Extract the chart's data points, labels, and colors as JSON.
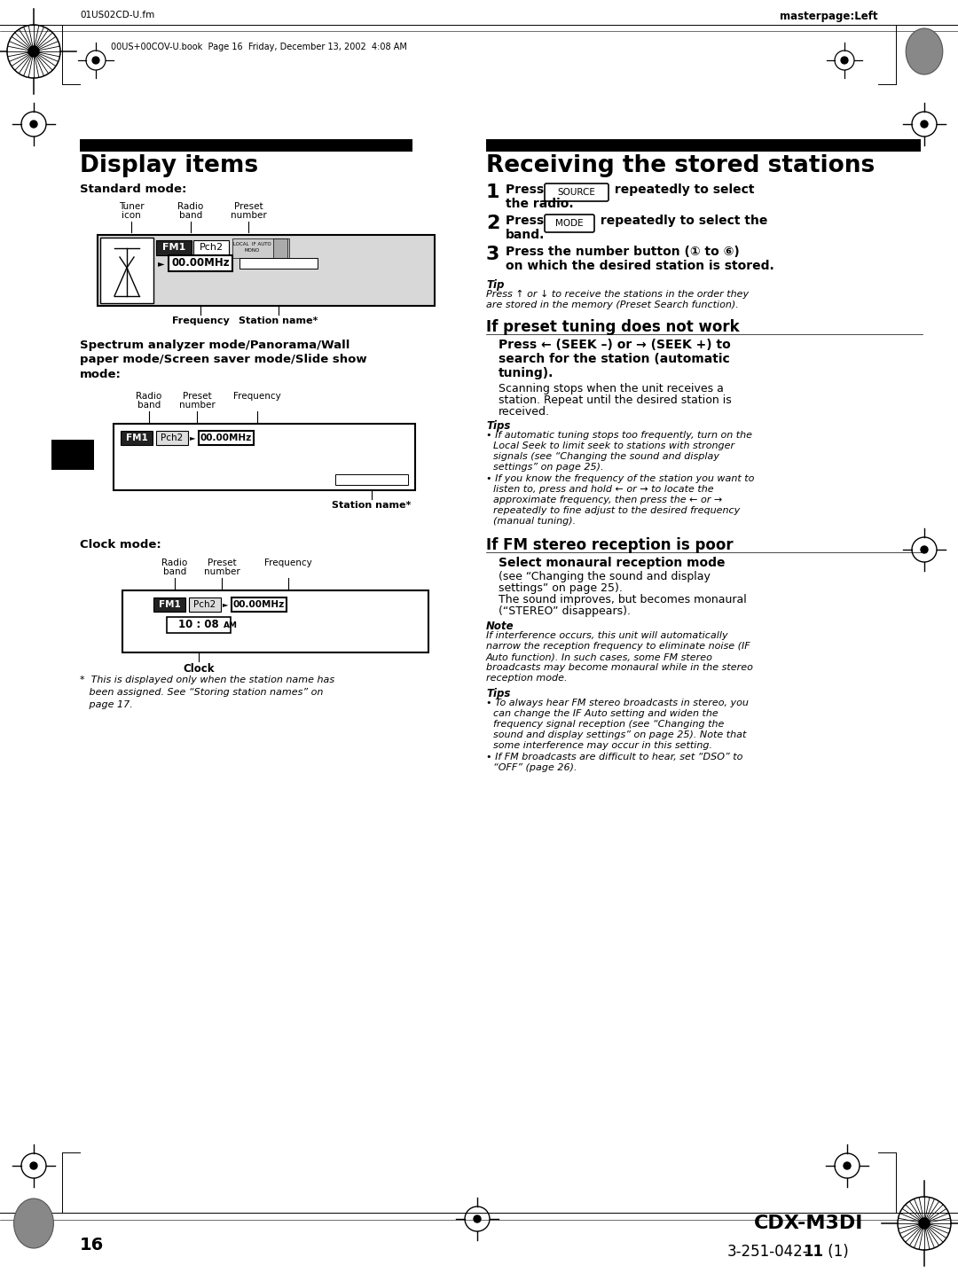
{
  "bg_color": "#ffffff",
  "page_header_left": "01US02CD-U.fm",
  "page_header_right": "masterpage:Left",
  "book_line": "00US+00COV-U.book  Page 16  Friday, December 13, 2002  4:08 AM",
  "left_title": "Display items",
  "right_title": "Receiving the stored stations",
  "page_number": "16",
  "bottom_right_model": "CDX-M3DI",
  "bottom_right_part": "3-251-042-\u001111 (1)"
}
